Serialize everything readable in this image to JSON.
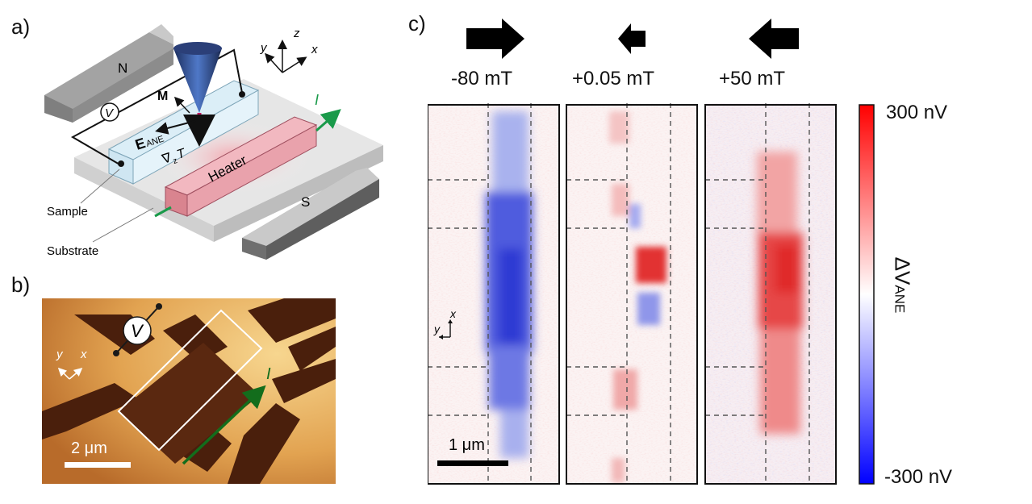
{
  "panel_labels": {
    "a": "a)",
    "b": "b)",
    "c": "c)"
  },
  "schematic": {
    "north_magnet": "N",
    "south_magnet": "S",
    "voltmeter": "V",
    "magnetization": "M",
    "e_field_main": "E",
    "e_field_sub": "ANE",
    "gradient_main": "∇",
    "gradient_sub": "z",
    "gradient_T": "T",
    "heater": "Heater",
    "current": "I",
    "sample": "Sample",
    "substrate": "Substrate",
    "axis_y": "y",
    "axis_z": "z",
    "axis_x": "x"
  },
  "micrograph": {
    "voltmeter": "V",
    "axis_y": "y",
    "axis_x": "x",
    "current": "I",
    "scale_bar": "2 μm"
  },
  "maps": {
    "fields": [
      {
        "label": "-80 mT",
        "arrow": "right"
      },
      {
        "label": "+0.05 mT",
        "arrow": "left"
      },
      {
        "label": "+50 mT",
        "arrow": "left"
      }
    ],
    "scale_bar": "1 μm",
    "axis_y": "y",
    "axis_x": "x"
  },
  "colorbar": {
    "max": "300 nV",
    "min": "-300 nV",
    "label_main": "ΔV",
    "label_sub": "ANE",
    "colors": [
      "#ff0000",
      "#ffffff",
      "#0000ff"
    ]
  }
}
